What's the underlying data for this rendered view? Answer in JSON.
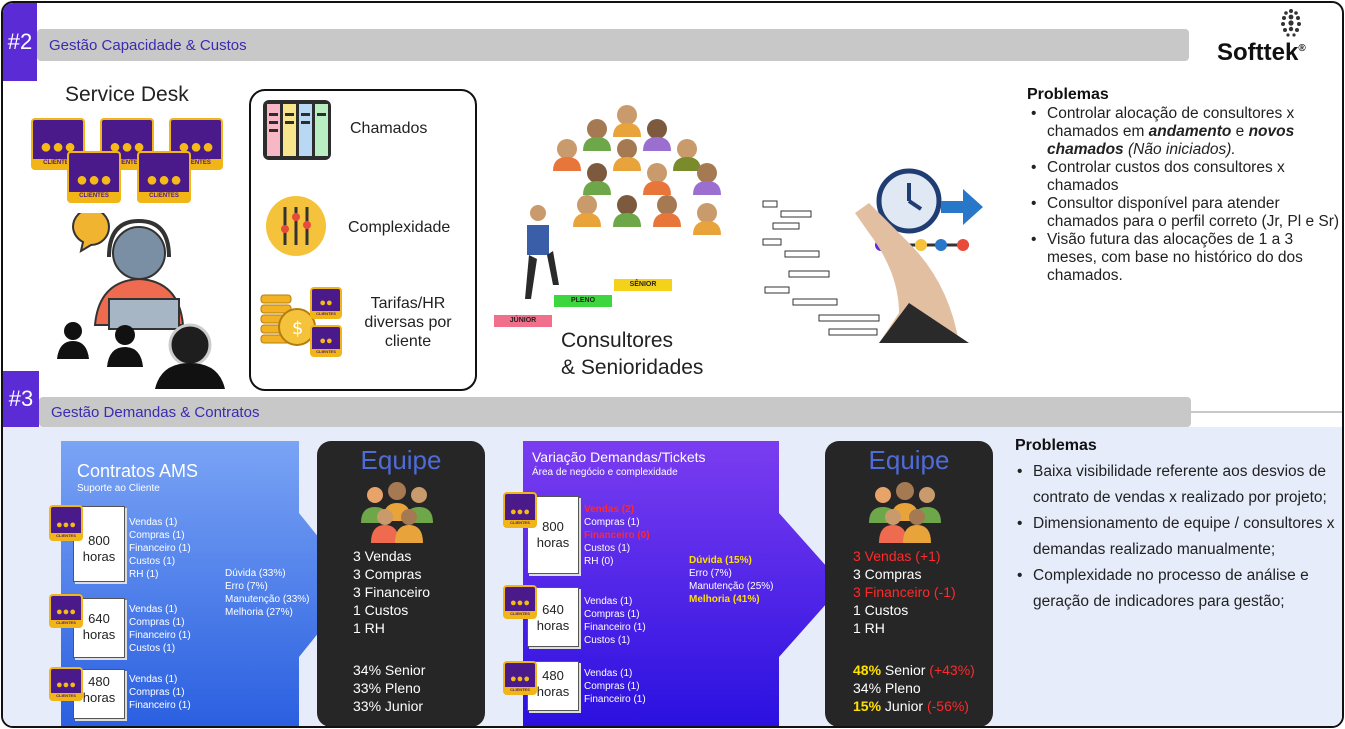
{
  "logo": {
    "text": "Softtek",
    "mark": "®"
  },
  "section2": {
    "number": "#2",
    "title": "Gestão Capacidade & Custos",
    "service_desk": "Service Desk",
    "client_label": "CLIENTES",
    "features": [
      {
        "icon": "kanban-board-icon",
        "label": "Chamados"
      },
      {
        "icon": "sliders-icon",
        "label": "Complexidade"
      },
      {
        "icon": "coins-icon",
        "label": "Tarifas/HR diversas por cliente"
      }
    ],
    "stairs": {
      "junior": "JÚNIOR",
      "pleno": "PLENO",
      "senior": "SÊNIOR"
    },
    "consultores_label_1": "Consultores",
    "consultores_label_2": "& Senioridades",
    "problems_title": "Problemas",
    "problems": {
      "p1_a": "Controlar alocação de consultores x chamados em ",
      "p1_b": "andamento",
      "p1_c": " e ",
      "p1_d": "novos chamados",
      "p1_e": " (Não iniciados).",
      "p2": "Controlar custos dos consultores x chamados",
      "p3": "Consultor disponível para atender chamados para o perfil correto (Jr, Pl e Sr)",
      "p4": "Visão futura das alocações de 1 a 3 meses, com base no histórico do dos chamados."
    }
  },
  "section3": {
    "number": "#3",
    "title": "Gestão Demandas & Contratos",
    "contracts": {
      "title": "Contratos AMS",
      "subtitle": "Suporte ao Cliente",
      "docs": [
        {
          "hours": "800",
          "unit": "horas",
          "items": [
            "Vendas (1)",
            "Compras (1)",
            "Financeiro (1)",
            "Custos (1)",
            "RH (1)"
          ]
        },
        {
          "hours": "640",
          "unit": "horas",
          "items": [
            "Vendas (1)",
            "Compras (1)",
            "Financeiro (1)",
            "Custos (1)"
          ]
        },
        {
          "hours": "480",
          "unit": "horas",
          "items": [
            "Vendas (1)",
            "Compras (1)",
            "Financeiro (1)"
          ]
        }
      ],
      "complexity": [
        "Dúvida (33%)",
        "Erro (7%)",
        "Manutenção (33%)",
        "Melhoria (27%)"
      ]
    },
    "team1": {
      "title": "Equipe",
      "lines": [
        "3 Vendas",
        "3 Compras",
        "3 Financeiro",
        "1 Custos",
        "1 RH"
      ],
      "levels": [
        "34% Senior",
        "33% Pleno",
        "33% Junior"
      ]
    },
    "variation": {
      "title": "Variação Demandas/Tickets",
      "subtitle": "Área de negócio e complexidade",
      "docs": [
        {
          "hours": "800",
          "unit": "horas",
          "items": [
            "Vendas (2)",
            "Compras (1)",
            "Financeiro (0)",
            "Custos (1)",
            "RH (0)"
          ]
        },
        {
          "hours": "640",
          "unit": "horas",
          "items": [
            "Vendas (1)",
            "Compras (1)",
            "Financeiro (1)",
            "Custos (1)"
          ]
        },
        {
          "hours": "480",
          "unit": "horas",
          "items": [
            "Vendas (1)",
            "Compras (1)",
            "Financeiro (1)"
          ]
        }
      ],
      "complexity": [
        "Dúvida (15%)",
        "Erro (7%)",
        "Manutenção (25%)",
        "Melhoria (41%)"
      ]
    },
    "team2": {
      "title": "Equipe",
      "l1": "3 Vendas (+1)",
      "l2": "3 Compras",
      "l3": "3 Financeiro (-1)",
      "l4": "1 Custos",
      "l5": "1 RH",
      "senior_pct": "48%",
      "senior_label": " Senior",
      "senior_delta": "(+43%)",
      "pleno": "34% Pleno",
      "junior_pct": "15%",
      "junior_label": " Junior",
      "junior_delta": "(-56%)"
    },
    "problems_title": "Problemas",
    "problems": [
      "Baixa visibilidade referente aos desvios de contrato de vendas x realizado por projeto;",
      "Dimensionamento de equipe / consultores x demandas realizado manualmente;",
      "Complexidade no processo de análise e geração de indicadores para gestão;"
    ]
  }
}
